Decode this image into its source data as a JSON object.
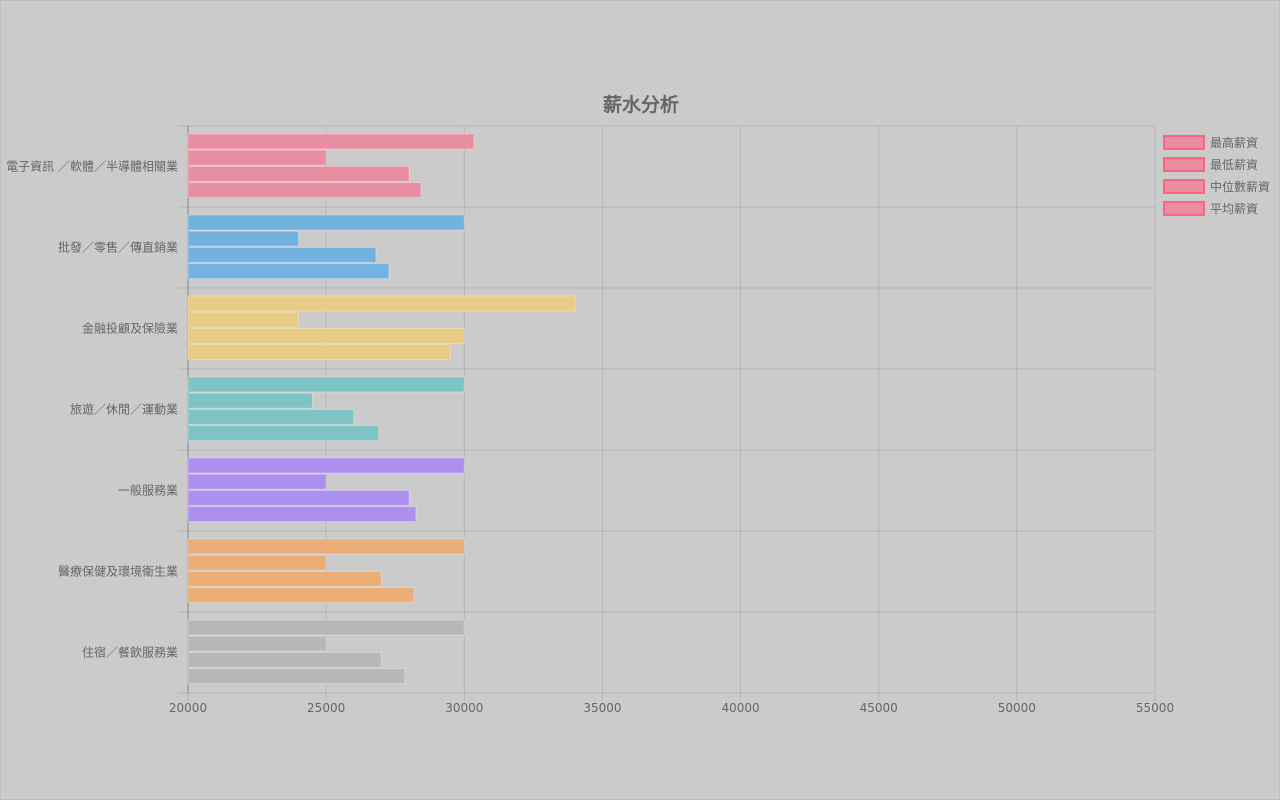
{
  "chart_data": {
    "type": "bar",
    "orientation": "horizontal",
    "title": "薪水分析",
    "categories": [
      "電子資訊 ／軟體／半導體相關業",
      "批發／零售／傳直銷業",
      "金融投顧及保險業",
      "旅遊／休閒／運動業",
      "一般服務業",
      "醫療保健及環境衛生業",
      "住宿／餐飲服務業"
    ],
    "series": [
      {
        "name": "最高薪資",
        "values": [
          30350,
          30000,
          34000,
          30000,
          30000,
          30000,
          30000
        ]
      },
      {
        "name": "最低薪資",
        "values": [
          25000,
          24000,
          24000,
          24500,
          25000,
          25000,
          25000
        ]
      },
      {
        "name": "中位數薪資",
        "values": [
          28000,
          26800,
          30000,
          26000,
          28000,
          27000,
          27000
        ]
      },
      {
        "name": "平均薪資",
        "values": [
          28430,
          27270,
          29500,
          26900,
          28250,
          28180,
          27850
        ]
      }
    ],
    "category_colors": [
      "#e88ea0",
      "#72b2e0",
      "#e9cb84",
      "#7fc4c4",
      "#ad8fee",
      "#ebae78",
      "#b7b7b7"
    ],
    "legend_color": "#ff6384",
    "xlim": [
      20000,
      55000
    ],
    "xticks": [
      "20000",
      "25000",
      "30000",
      "35000",
      "40000",
      "45000",
      "50000",
      "55000"
    ],
    "grid": true,
    "legend_position": "right"
  }
}
